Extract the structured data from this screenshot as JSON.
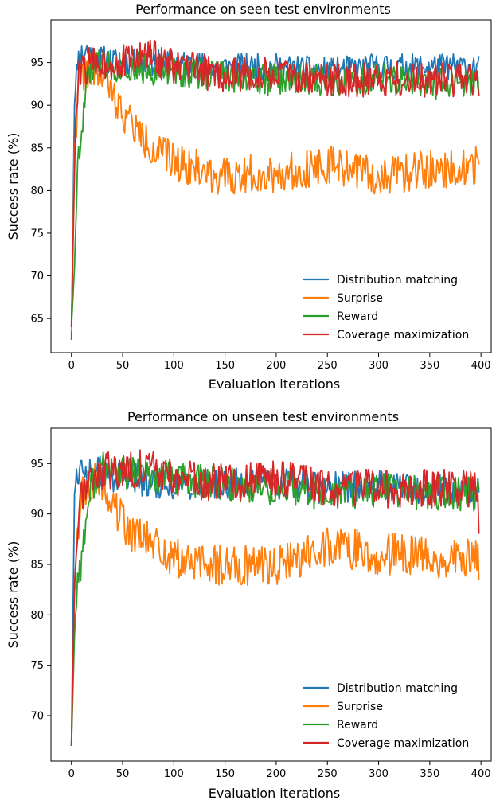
{
  "chart_data": [
    {
      "type": "line",
      "title": "Performance on seen test environments",
      "xlabel": "Evaluation iterations",
      "ylabel": "Success rate (%)",
      "xlim": [
        -20,
        410
      ],
      "ylim": [
        61,
        100
      ],
      "xticks": [
        0,
        50,
        100,
        150,
        200,
        250,
        300,
        350,
        400
      ],
      "yticks": [
        65,
        70,
        75,
        80,
        85,
        90,
        95
      ],
      "legend_position": "lower-right",
      "grid": false,
      "series": [
        {
          "name": "Distribution matching",
          "color": "#1f77b4",
          "points": [
            [
              0,
              62.5
            ],
            [
              3,
              90
            ],
            [
              6,
              95.5
            ],
            [
              10,
              96
            ],
            [
              15,
              96.5
            ],
            [
              25,
              95.5
            ],
            [
              50,
              95
            ],
            [
              100,
              95
            ],
            [
              150,
              94.5
            ],
            [
              200,
              94.5
            ],
            [
              250,
              94
            ],
            [
              300,
              94.5
            ],
            [
              350,
              94.5
            ],
            [
              398,
              94.5
            ]
          ],
          "noise": 1.0,
          "seed": 11
        },
        {
          "name": "Surprise",
          "color": "#ff7f0e",
          "points": [
            [
              0,
              63.5
            ],
            [
              3,
              85
            ],
            [
              8,
              93
            ],
            [
              15,
              94
            ],
            [
              25,
              94
            ],
            [
              35,
              92.5
            ],
            [
              45,
              90
            ],
            [
              55,
              88.5
            ],
            [
              70,
              86
            ],
            [
              85,
              84.5
            ],
            [
              100,
              83.5
            ],
            [
              125,
              82.5
            ],
            [
              150,
              81.5
            ],
            [
              175,
              82
            ],
            [
              200,
              82
            ],
            [
              225,
              82.5
            ],
            [
              250,
              83
            ],
            [
              275,
              82.5
            ],
            [
              300,
              81.5
            ],
            [
              325,
              82
            ],
            [
              350,
              82.5
            ],
            [
              375,
              82.5
            ],
            [
              398,
              83
            ]
          ],
          "noise": 1.4,
          "seed": 22
        },
        {
          "name": "Reward",
          "color": "#2ca02c",
          "points": [
            [
              0,
              64
            ],
            [
              3,
              71
            ],
            [
              6,
              83
            ],
            [
              10,
              86
            ],
            [
              14,
              92
            ],
            [
              20,
              94.5
            ],
            [
              30,
              95
            ],
            [
              50,
              94.5
            ],
            [
              100,
              94
            ],
            [
              150,
              93.5
            ],
            [
              200,
              93
            ],
            [
              250,
              93
            ],
            [
              300,
              93
            ],
            [
              350,
              92.5
            ],
            [
              398,
              92.5
            ]
          ],
          "noise": 1.2,
          "seed": 33
        },
        {
          "name": "Coverage maximization",
          "color": "#d62728",
          "points": [
            [
              0,
              64
            ],
            [
              4,
              88
            ],
            [
              8,
              94
            ],
            [
              20,
              95
            ],
            [
              50,
              95
            ],
            [
              75,
              96
            ],
            [
              100,
              94.5
            ],
            [
              150,
              93.5
            ],
            [
              200,
              93.5
            ],
            [
              250,
              93
            ],
            [
              300,
              93
            ],
            [
              350,
              93
            ],
            [
              395,
              93
            ],
            [
              398,
              90
            ]
          ],
          "noise": 1.3,
          "seed": 44
        }
      ]
    },
    {
      "type": "line",
      "title": "Performance on unseen test environments",
      "xlabel": "Evaluation iterations",
      "ylabel": "Success rate (%)",
      "xlim": [
        -20,
        410
      ],
      "ylim": [
        65.5,
        98.5
      ],
      "xticks": [
        0,
        50,
        100,
        150,
        200,
        250,
        300,
        350,
        400
      ],
      "yticks": [
        70,
        75,
        80,
        85,
        90,
        95
      ],
      "legend_position": "lower-right",
      "grid": false,
      "series": [
        {
          "name": "Distribution matching",
          "color": "#1f77b4",
          "points": [
            [
              0,
              67
            ],
            [
              3,
              92
            ],
            [
              6,
              94.5
            ],
            [
              15,
              94.5
            ],
            [
              50,
              93.5
            ],
            [
              100,
              93
            ],
            [
              150,
              93
            ],
            [
              200,
              93
            ],
            [
              250,
              92.5
            ],
            [
              300,
              93
            ],
            [
              350,
              92.5
            ],
            [
              398,
              92.5
            ]
          ],
          "noise": 1.0,
          "seed": 55
        },
        {
          "name": "Surprise",
          "color": "#ff7f0e",
          "points": [
            [
              0,
              67
            ],
            [
              3,
              82
            ],
            [
              8,
              91
            ],
            [
              15,
              93
            ],
            [
              30,
              93
            ],
            [
              45,
              90
            ],
            [
              60,
              88
            ],
            [
              80,
              87
            ],
            [
              100,
              85.5
            ],
            [
              125,
              85
            ],
            [
              150,
              85
            ],
            [
              175,
              85
            ],
            [
              200,
              85
            ],
            [
              230,
              86
            ],
            [
              250,
              87
            ],
            [
              275,
              86.5
            ],
            [
              300,
              86
            ],
            [
              325,
              86
            ],
            [
              350,
              85.5
            ],
            [
              375,
              85.5
            ],
            [
              398,
              85.5
            ]
          ],
          "noise": 1.3,
          "seed": 66
        },
        {
          "name": "Reward",
          "color": "#2ca02c",
          "points": [
            [
              0,
              67
            ],
            [
              3,
              78
            ],
            [
              6,
              84
            ],
            [
              10,
              85.5
            ],
            [
              15,
              90
            ],
            [
              20,
              93
            ],
            [
              30,
              94.5
            ],
            [
              50,
              94
            ],
            [
              100,
              93.5
            ],
            [
              150,
              93
            ],
            [
              200,
              92.5
            ],
            [
              250,
              92
            ],
            [
              300,
              92.5
            ],
            [
              350,
              92
            ],
            [
              398,
              92
            ]
          ],
          "noise": 1.1,
          "seed": 77
        },
        {
          "name": "Coverage maximization",
          "color": "#d62728",
          "points": [
            [
              0,
              67
            ],
            [
              3,
              83
            ],
            [
              8,
              92
            ],
            [
              20,
              94
            ],
            [
              50,
              94.5
            ],
            [
              80,
              94.5
            ],
            [
              100,
              93.5
            ],
            [
              150,
              93
            ],
            [
              200,
              93.5
            ],
            [
              250,
              92.5
            ],
            [
              300,
              92.5
            ],
            [
              350,
              92.5
            ],
            [
              395,
              92.5
            ],
            [
              398,
              89
            ]
          ],
          "noise": 1.2,
          "seed": 88
        }
      ]
    }
  ]
}
